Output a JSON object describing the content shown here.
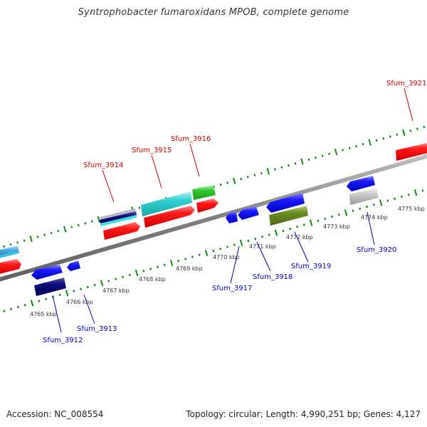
{
  "title": "Syntrophobacter fumaroxidans MPOB, complete genome",
  "footer": {
    "accession_label": "Accession:",
    "accession": "NC_008554",
    "topology_label": "Topology:",
    "topology": "circular",
    "length_label": "Length:",
    "length": "4,990,251 bp",
    "genes_label": "Genes:",
    "genes": "4,127"
  },
  "colors": {
    "forward_label": "#cc0000",
    "reverse_label": "#0000aa",
    "tick": "#118811",
    "backbone": "#808080"
  },
  "scale": {
    "tick_labels": [
      "4765 kbp",
      "4766 kbp",
      "4767 kbp",
      "4768 kbp",
      "4769 kbp",
      "4770 kbp",
      "4771 kbp",
      "4772 kbp",
      "4773 kbp",
      "4774 kbp",
      "4775 kbp"
    ],
    "tick_values": [
      4765,
      4766,
      4767,
      4768,
      4769,
      4770,
      4771,
      4772,
      4773,
      4774,
      4775
    ]
  },
  "gene_labels": [
    {
      "name": "Sfum_3914",
      "strand": "forward"
    },
    {
      "name": "Sfum_3915",
      "strand": "forward"
    },
    {
      "name": "Sfum_3916",
      "strand": "forward"
    },
    {
      "name": "Sfum_3921",
      "strand": "forward"
    },
    {
      "name": "Sfum_3912",
      "strand": "reverse"
    },
    {
      "name": "Sfum_3913",
      "strand": "reverse"
    },
    {
      "name": "Sfum_3917",
      "strand": "reverse"
    },
    {
      "name": "Sfum_3918",
      "strand": "reverse"
    },
    {
      "name": "Sfum_3919",
      "strand": "reverse"
    },
    {
      "name": "Sfum_3920",
      "strand": "reverse"
    }
  ]
}
